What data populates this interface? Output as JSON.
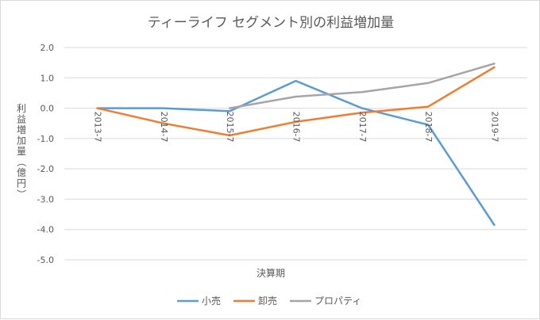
{
  "chart_data": {
    "type": "line",
    "title": "ティーライフ セグメント別の利益増加量",
    "xlabel": "決算期",
    "ylabel": "利益増加量（億円）",
    "categories": [
      "2013-7",
      "2014-7",
      "2015-7",
      "2016-7",
      "2017-7",
      "2018-7",
      "2019-7"
    ],
    "ylim": [
      -5.0,
      2.0
    ],
    "ytick_step": 1.0,
    "yticks": [
      "2.0",
      "1.0",
      "0.0",
      "-1.0",
      "-2.0",
      "-3.0",
      "-4.0",
      "-5.0"
    ],
    "grid": true,
    "legend_position": "bottom",
    "series": [
      {
        "name": "小売",
        "color": "#5b9bd5",
        "values": [
          0.0,
          0.0,
          -0.1,
          0.9,
          0.0,
          -0.55,
          -3.85
        ]
      },
      {
        "name": "卸売",
        "color": "#ed7d31",
        "values": [
          0.0,
          -0.5,
          -0.9,
          -0.45,
          -0.15,
          0.05,
          1.35
        ]
      },
      {
        "name": "プロパティ",
        "color": "#a5a5a5",
        "values": [
          null,
          null,
          0.0,
          0.38,
          0.53,
          0.83,
          1.47
        ]
      }
    ]
  }
}
